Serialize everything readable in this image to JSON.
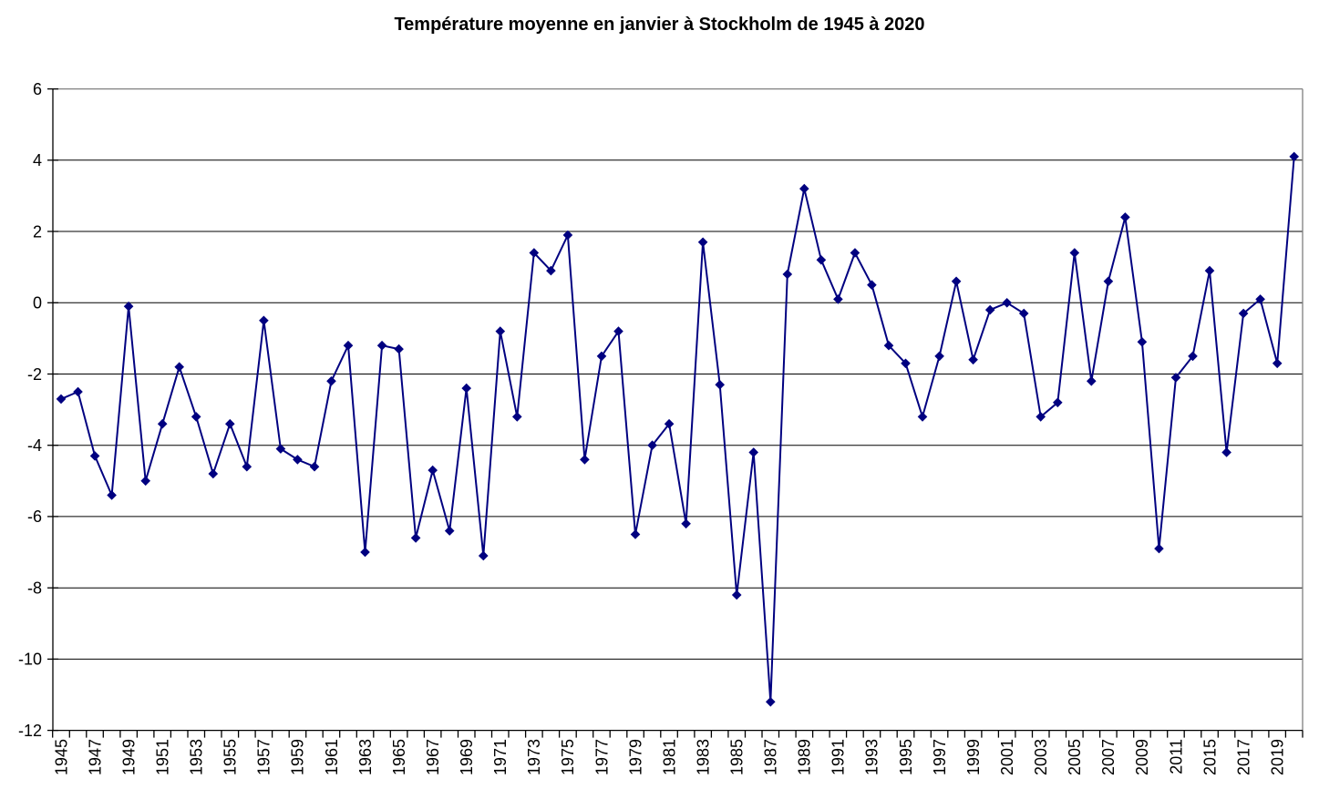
{
  "chart_data": {
    "type": "line",
    "title": "Température moyenne en janvier à Stockholm de 1945 à 2020",
    "xlabel": "",
    "ylabel": "",
    "ylim": [
      -12,
      6
    ],
    "y_ticks": [
      6,
      4,
      2,
      0,
      -2,
      -4,
      -6,
      -8,
      -10,
      -12
    ],
    "grid": "horizontal-on",
    "legend": "none",
    "marker": "diamond",
    "x_tick_labels": [
      "1945",
      "1947",
      "1949",
      "1951",
      "1953",
      "1955",
      "1957",
      "1959",
      "1961",
      "1963",
      "1965",
      "1967",
      "1969",
      "1971",
      "1973",
      "1975",
      "1977",
      "1979",
      "1981",
      "1983",
      "1985",
      "1987",
      "1989",
      "1991",
      "1993",
      "1995",
      "1997",
      "1999",
      "2001",
      "2003",
      "2005",
      "2007",
      "2009",
      "2011",
      "2015",
      "2017",
      "2019"
    ],
    "categories": [
      1945,
      1946,
      1947,
      1948,
      1949,
      1950,
      1951,
      1952,
      1953,
      1954,
      1955,
      1956,
      1957,
      1958,
      1959,
      1960,
      1961,
      1962,
      1963,
      1964,
      1965,
      1966,
      1967,
      1968,
      1969,
      1970,
      1971,
      1972,
      1973,
      1974,
      1975,
      1976,
      1977,
      1978,
      1979,
      1980,
      1981,
      1982,
      1983,
      1984,
      1985,
      1986,
      1987,
      1988,
      1989,
      1990,
      1991,
      1992,
      1993,
      1994,
      1995,
      1996,
      1997,
      1998,
      1999,
      2000,
      2001,
      2002,
      2003,
      2004,
      2005,
      2006,
      2007,
      2008,
      2009,
      2010,
      2011,
      2014,
      2015,
      2016,
      2017,
      2018,
      2019,
      2020
    ],
    "values": [
      -2.7,
      -2.5,
      -4.3,
      -5.4,
      -0.1,
      -5.0,
      -3.4,
      -1.8,
      -3.2,
      -4.8,
      -3.4,
      -4.6,
      -0.5,
      -4.1,
      -4.4,
      -4.6,
      -2.2,
      -1.2,
      -7.0,
      -1.2,
      -1.3,
      -6.6,
      -4.7,
      -6.4,
      -2.4,
      -7.1,
      -0.8,
      -3.2,
      1.4,
      0.9,
      1.9,
      -4.4,
      -1.5,
      -0.8,
      -6.5,
      -4.0,
      -3.4,
      -6.2,
      1.7,
      -2.3,
      -8.2,
      -4.2,
      -11.2,
      0.8,
      3.2,
      1.2,
      0.1,
      1.4,
      0.5,
      -1.2,
      -1.7,
      -3.2,
      -1.5,
      0.6,
      -1.6,
      -0.2,
      0.0,
      -0.3,
      -3.2,
      -2.8,
      1.4,
      -2.2,
      0.6,
      2.4,
      -1.1,
      -6.9,
      -2.1,
      -1.5,
      0.9,
      -4.2,
      -0.3,
      0.1,
      -1.7,
      4.1
    ],
    "colors": {
      "line": "#000080",
      "marker": "#000080",
      "gridline": "#000000",
      "axis": "#000000",
      "plot_border": "#808080",
      "background": "#ffffff",
      "text": "#000000"
    }
  }
}
